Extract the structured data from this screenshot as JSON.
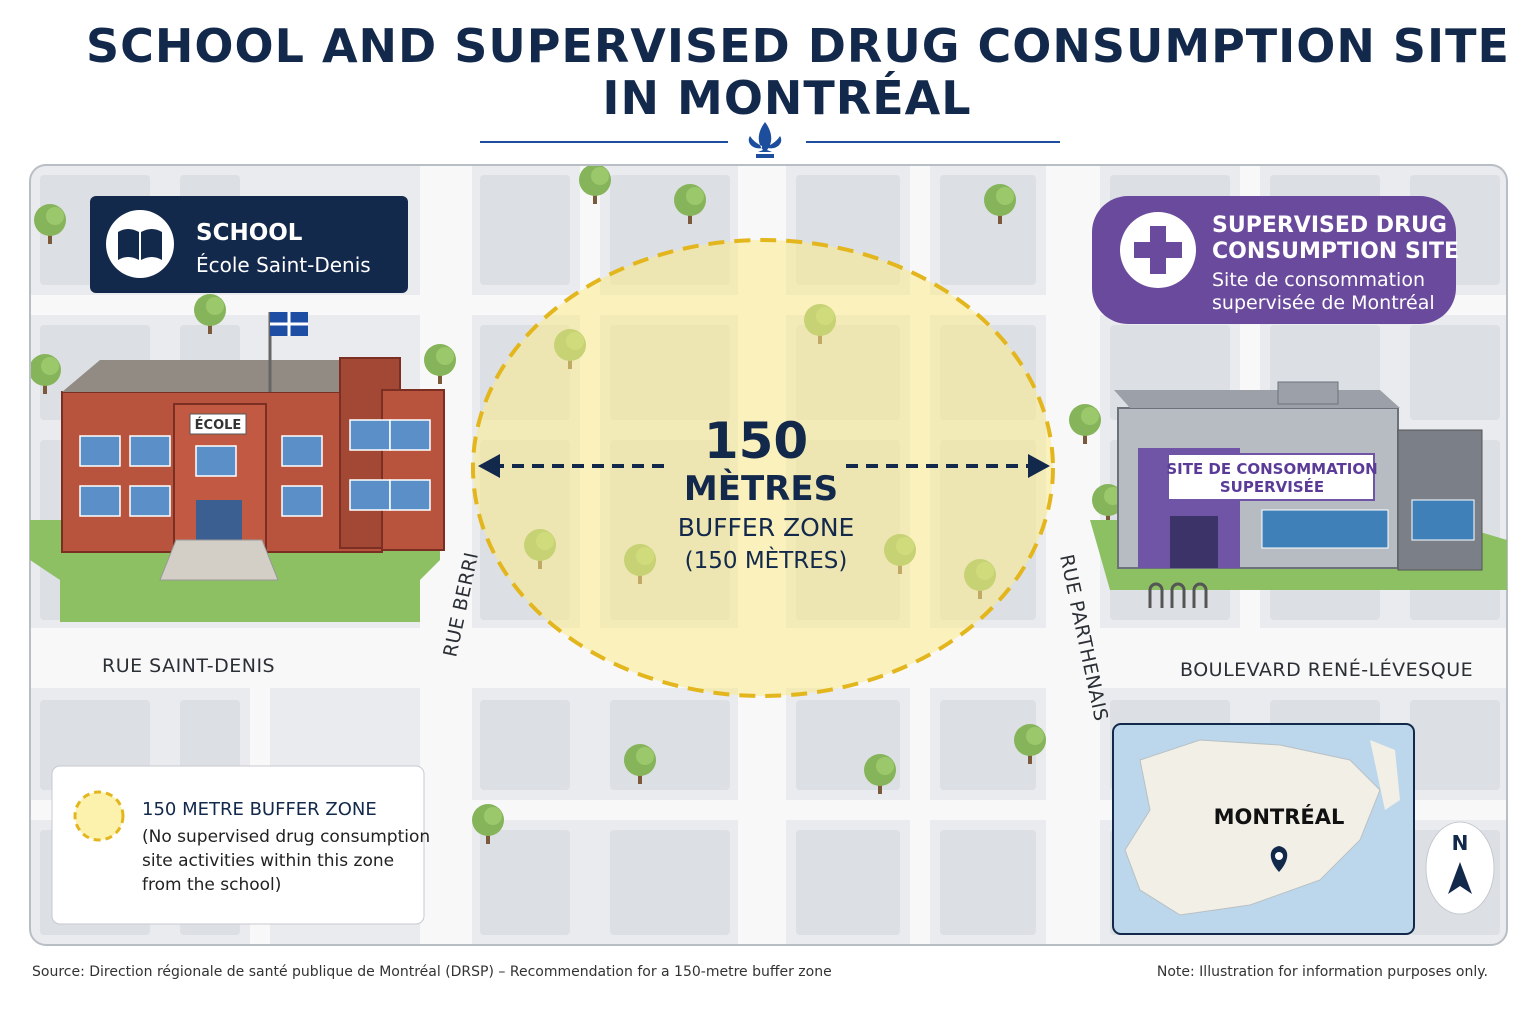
{
  "header": {
    "title_lines": [
      "SCHOOL AND SUPERVISED DRUG CONSUMPTION SITE",
      "IN MONTRÉAL"
    ]
  },
  "school_card": {
    "title": "SCHOOL",
    "name": "École Saint-Denis"
  },
  "site_card": {
    "title_lines": [
      "SUPERVISED DRUG",
      "CONSUMPTION SITE"
    ],
    "name_lines": [
      "Site de consommation",
      "supervisée de Montréal"
    ]
  },
  "buildings": {
    "school_sign": "ÉCOLE",
    "site_sign_lines": [
      "SITE DE CONSOMMATION",
      "SUPERVISÉE"
    ]
  },
  "buffer": {
    "distance": "150",
    "unit": "MÈTRES",
    "label": "BUFFER ZONE",
    "sublabel": "(150 MÈTRES)"
  },
  "streets": {
    "rue_saint_denis": "RUE SAINT-DENIS",
    "rue_berri": "RUE BERRI",
    "rue_parthenais": "RUE PARTHENAIS",
    "boulevard": "BOULEVARD RENÉ-LÉVESQUE"
  },
  "legend": {
    "title": "150 METRE BUFFER ZONE",
    "description_lines": [
      "(No supervised drug consumption",
      "site activities within this zone",
      "from the school)"
    ]
  },
  "inset": {
    "label": "MONTRÉAL",
    "north": "N"
  },
  "footer": {
    "source": "Source: Direction régionale de santé publique de Montréal (DRSP) – Recommendation for a 150-metre buffer zone",
    "note": "Note: Illustration for information purposes only."
  }
}
